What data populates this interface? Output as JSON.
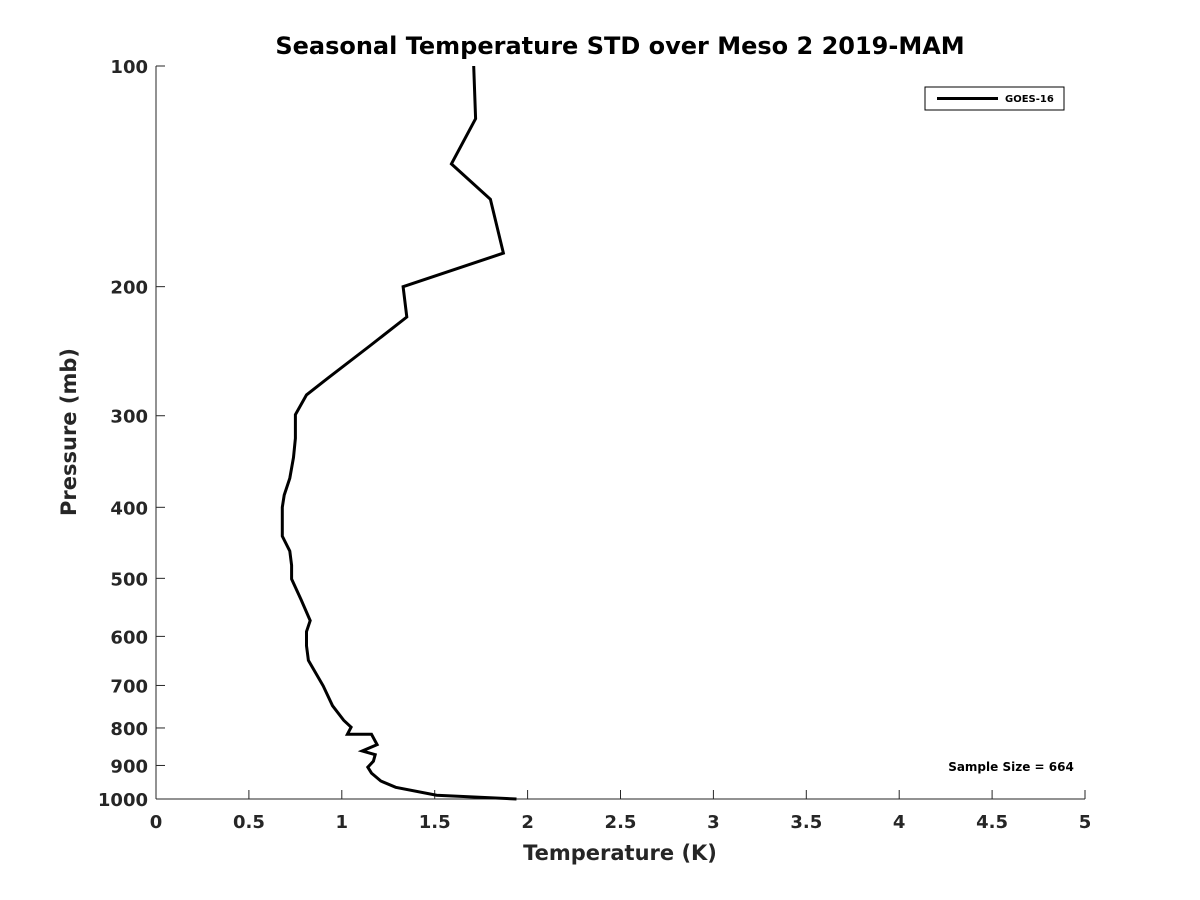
{
  "chart_data": {
    "type": "line",
    "title": "Seasonal Temperature STD over Meso 2  2019-MAM",
    "xlabel": "Temperature (K)",
    "ylabel": "Pressure (mb)",
    "xlim": [
      0,
      5
    ],
    "ylim": [
      100,
      1000
    ],
    "yscale": "log",
    "y_reversed": true,
    "grid": false,
    "x_ticks": [
      0,
      0.5,
      1,
      1.5,
      2,
      2.5,
      3,
      3.5,
      4,
      4.5,
      5
    ],
    "x_tick_labels": [
      "0",
      "0.5",
      "1",
      "1.5",
      "2",
      "2.5",
      "3",
      "3.5",
      "4",
      "4.5",
      "5"
    ],
    "y_ticks": [
      100,
      200,
      300,
      400,
      500,
      600,
      700,
      800,
      900,
      1000
    ],
    "y_tick_labels": [
      "100",
      "200",
      "300",
      "400",
      "500",
      "600",
      "700",
      "800",
      "900",
      "1000"
    ],
    "legend": {
      "position": "top-right",
      "entries": [
        "GOES-16"
      ]
    },
    "annotation": "Sample Size = 664",
    "line_color": "#000000",
    "series": [
      {
        "name": "GOES-16",
        "x": [
          1.71,
          1.72,
          1.59,
          1.8,
          1.87,
          1.33,
          1.35,
          1.15,
          0.93,
          0.81,
          0.75,
          0.75,
          0.74,
          0.72,
          0.69,
          0.68,
          0.68,
          0.68,
          0.72,
          0.73,
          0.73,
          0.78,
          0.83,
          0.81,
          0.81,
          0.82,
          0.87,
          0.9,
          0.95,
          1.01,
          1.05,
          1.03,
          1.16,
          1.19,
          1.11,
          1.18,
          1.17,
          1.14,
          1.16,
          1.21,
          1.29,
          1.51,
          1.94
        ],
        "y": [
          100,
          118,
          136,
          152,
          180,
          200,
          220,
          241,
          266,
          281,
          299,
          322,
          342,
          365,
          385,
          400,
          419,
          438,
          459,
          480,
          501,
          534,
          571,
          591,
          618,
          647,
          680,
          701,
          746,
          781,
          798,
          816,
          816,
          843,
          860,
          870,
          888,
          905,
          922,
          945,
          964,
          988,
          1000
        ]
      }
    ]
  }
}
